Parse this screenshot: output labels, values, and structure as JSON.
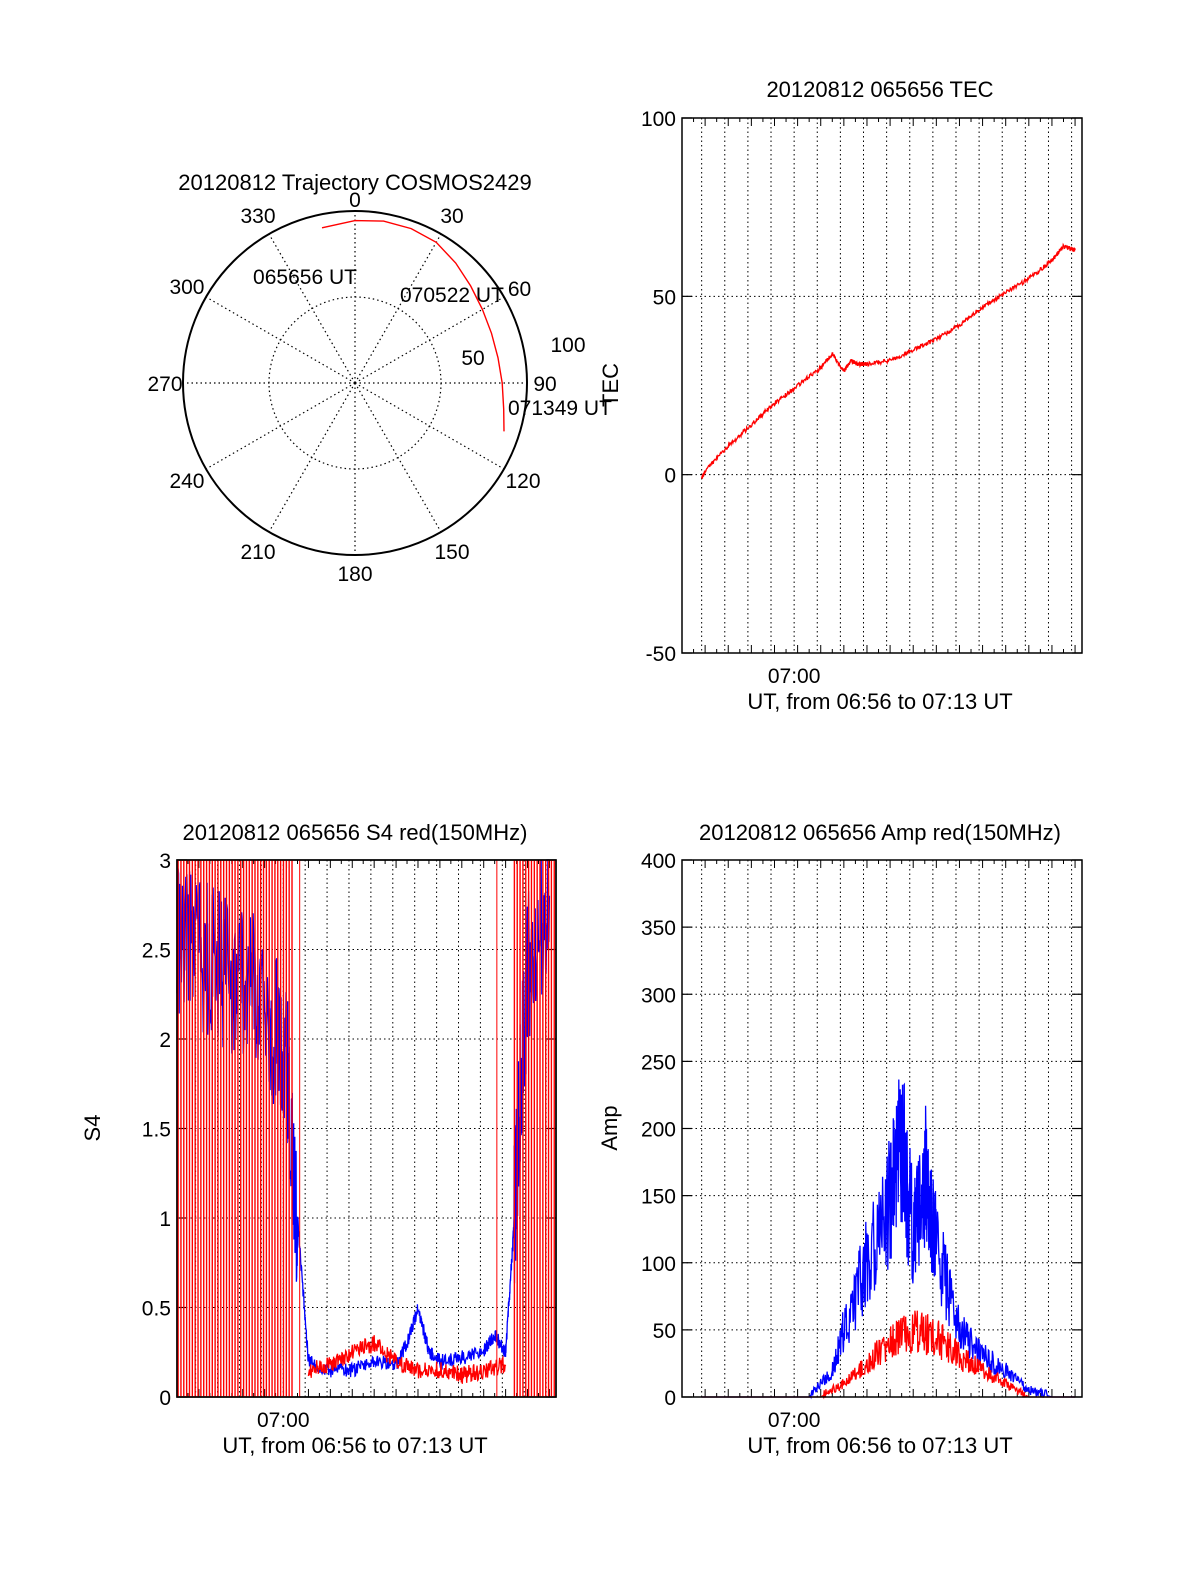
{
  "colors": {
    "red": "#ff0000",
    "blue": "#0000ff",
    "axis": "#000000",
    "grid": "#000000"
  },
  "chart_data": [
    {
      "id": "polar",
      "type": "scatter",
      "title": "20120812 Trajectory COSMOS2429",
      "azimuth_labels": [
        "0",
        "30",
        "60",
        "90",
        "120",
        "150",
        "180",
        "210",
        "240",
        "270",
        "300",
        "330"
      ],
      "ring_labels": [
        "50",
        "100"
      ],
      "track_labels": [
        "065656 UT",
        "070522 UT",
        "071349 UT"
      ],
      "track": {
        "azimuth_deg": [
          -12,
          0,
          10,
          20,
          30,
          40,
          50,
          60,
          70,
          80,
          90,
          100,
          108
        ],
        "zenith_deg": [
          83,
          85,
          86,
          86,
          85,
          82,
          79,
          77,
          76,
          76,
          77,
          79,
          82
        ]
      },
      "zenith_max_deg": 90
    },
    {
      "id": "tec",
      "type": "line",
      "title": "20120812 065656 TEC",
      "xlabel": "UT, from 06:56 to 07:13 UT",
      "ylabel": "TEC",
      "xtick_label": "07:00",
      "ylim": [
        -50,
        100
      ],
      "yticks": [
        "-50",
        "0",
        "50",
        "100"
      ],
      "series": [
        {
          "color": "red",
          "x_min": [
            0.85,
            1,
            2,
            3,
            4,
            5,
            6,
            6.5,
            7,
            7.3,
            7.6,
            8,
            9,
            10,
            11,
            12,
            13,
            14,
            15,
            16,
            16.5,
            17
          ],
          "y": [
            -1,
            1,
            8,
            14,
            20,
            25,
            30,
            34,
            29,
            32,
            31,
            31,
            32,
            35,
            38,
            42,
            47,
            51,
            55,
            60,
            64,
            63
          ]
        }
      ]
    },
    {
      "id": "s4",
      "type": "line",
      "title": "20120812 065656 S4 red(150MHz)",
      "xlabel": "UT, from 06:56 to 07:13 UT",
      "ylabel": "S4",
      "xtick_label": "07:00",
      "ylim": [
        0,
        3
      ],
      "yticks": [
        "0",
        "0.5",
        "1",
        "1.5",
        "2",
        "2.5",
        "3"
      ],
      "series": [
        {
          "color": "blue",
          "x_min": [
            0,
            1,
            2,
            3,
            4,
            5,
            5.5,
            6,
            7,
            8,
            9,
            10,
            10.5,
            11,
            11.5,
            12,
            13,
            14,
            14.5,
            15,
            15.3,
            15.6,
            16,
            17
          ],
          "y": [
            2.6,
            2.5,
            2.4,
            2.3,
            2.2,
            1.9,
            1.0,
            0.2,
            0.15,
            0.15,
            0.2,
            0.18,
            0.3,
            0.5,
            0.25,
            0.2,
            0.22,
            0.25,
            0.35,
            0.25,
            0.8,
            1.5,
            2.4,
            2.8
          ]
        },
        {
          "color": "red",
          "x_min": [
            6,
            7,
            8,
            9,
            10,
            11,
            12,
            13,
            14,
            15
          ],
          "y": [
            0.15,
            0.18,
            0.25,
            0.3,
            0.2,
            0.15,
            0.15,
            0.12,
            0.15,
            0.18
          ]
        }
      ]
    },
    {
      "id": "amp",
      "type": "line",
      "title": "20120812 065656 Amp red(150MHz)",
      "xlabel": "UT, from 06:56 to 07:13 UT",
      "ylabel": "Amp",
      "xtick_label": "07:00",
      "ylim": [
        0,
        400
      ],
      "yticks": [
        "0",
        "50",
        "100",
        "150",
        "200",
        "250",
        "300",
        "350",
        "400"
      ],
      "series": [
        {
          "color": "blue",
          "x_min": [
            0.85,
            5.5,
            6.5,
            7,
            8,
            9,
            9.5,
            10,
            10.5,
            11,
            12,
            13,
            14,
            15,
            16,
            17
          ],
          "y": [
            0,
            0,
            20,
            50,
            100,
            150,
            190,
            120,
            170,
            110,
            50,
            30,
            20,
            5,
            0,
            0
          ]
        },
        {
          "color": "red",
          "x_min": [
            0.85,
            6,
            7,
            8,
            9,
            10,
            11,
            12,
            13,
            14,
            15,
            17
          ],
          "y": [
            0,
            0,
            10,
            25,
            40,
            50,
            45,
            30,
            20,
            10,
            0,
            0
          ]
        }
      ]
    }
  ]
}
